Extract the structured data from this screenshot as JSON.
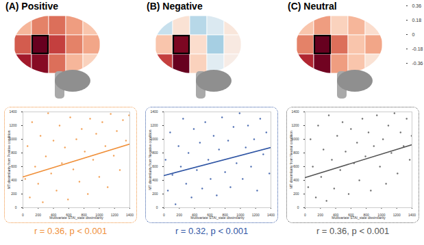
{
  "chart_data": [
    {
      "type": "scatter",
      "title": "(A) Positive",
      "color": "#f0903a",
      "x_label": "Multivariate STAI_state dissimilarity",
      "y_label": "MT dissimilarity from Positive condition",
      "xlim": [
        0,
        1400
      ],
      "ylim": [
        0,
        1400
      ],
      "xticks": [
        0,
        200,
        400,
        600,
        800,
        1000,
        1200,
        1400
      ],
      "yticks": [
        0,
        200,
        400,
        600,
        800,
        1000,
        1200,
        1400
      ],
      "x": [
        30,
        60,
        90,
        120,
        160,
        200,
        230,
        260,
        300,
        330,
        370,
        400,
        440,
        480,
        510,
        550,
        590,
        620,
        660,
        700,
        740,
        770,
        810,
        850,
        880,
        920,
        960,
        1000,
        1040,
        1080,
        1110,
        1150,
        1190,
        1230,
        1270,
        1310,
        1350,
        1390
      ],
      "y": [
        420,
        900,
        150,
        1250,
        600,
        350,
        1050,
        80,
        750,
        1380,
        500,
        980,
        250,
        1200,
        650,
        880,
        120,
        1320,
        560,
        1000,
        380,
        1150,
        820,
        200,
        1300,
        700,
        1080,
        450,
        1250,
        900,
        300,
        1370,
        760,
        1120,
        550,
        1280,
        980,
        1350
      ],
      "trend_line": {
        "x": [
          0,
          1400
        ],
        "y": [
          450,
          930
        ]
      },
      "annotation": "r = 0.36, p < 0.001",
      "brain_regions": [
        0.12,
        0.18,
        0.2,
        0.15,
        0.1,
        0.22,
        0.36,
        0.25,
        0.18,
        0.14,
        0.3,
        0.33,
        0.2,
        0.12,
        0.08
      ]
    },
    {
      "type": "scatter",
      "title": "(B) Negative",
      "color": "#2f55a4",
      "x_label": "Multivariate STAI_state dissimilarity",
      "y_label": "MT dissimilarity from Negative condition",
      "xlim": [
        0,
        1400
      ],
      "ylim": [
        0,
        1400
      ],
      "xticks": [
        0,
        200,
        400,
        600,
        800,
        1000,
        1200,
        1400
      ],
      "yticks": [
        0,
        200,
        400,
        600,
        800,
        1000,
        1200,
        1400
      ],
      "x": [
        20,
        50,
        80,
        110,
        150,
        190,
        220,
        250,
        290,
        320,
        360,
        390,
        430,
        470,
        500,
        540,
        580,
        610,
        650,
        690,
        720,
        760,
        800,
        840,
        870,
        910,
        950,
        990,
        1030,
        1070,
        1100,
        1140,
        1180,
        1220,
        1260,
        1300,
        1340,
        1380
      ],
      "y": [
        700,
        250,
        1100,
        480,
        50,
        900,
        600,
        1300,
        350,
        800,
        150,
        1150,
        550,
        950,
        280,
        1250,
        700,
        420,
        1050,
        180,
        850,
        1320,
        520,
        980,
        300,
        1180,
        650,
        1380,
        420,
        880,
        1200,
        600,
        1000,
        250,
        1300,
        780,
        1100,
        500
      ],
      "trend_line": {
        "x": [
          0,
          1400
        ],
        "y": [
          470,
          880
        ]
      },
      "annotation": "r = 0.32, p < 0.001",
      "brain_regions": [
        -0.08,
        0.05,
        -0.1,
        -0.05,
        0.04,
        0.1,
        0.34,
        0.06,
        -0.12,
        0.03,
        0.25,
        0.36,
        0.08,
        -0.04,
        0.02
      ]
    },
    {
      "type": "scatter",
      "title": "(C) Neutral",
      "color": "#555555",
      "x_label": "Multivariate STAI_state dissimilarity",
      "y_label": "MT dissimilarity from Neutral condition",
      "xlim": [
        0,
        1400
      ],
      "ylim": [
        0,
        1400
      ],
      "xticks": [
        0,
        200,
        400,
        600,
        800,
        1000,
        1200,
        1400
      ],
      "yticks": [
        0,
        200,
        400,
        600,
        800,
        1000,
        1200,
        1400
      ],
      "x": [
        40,
        70,
        100,
        140,
        170,
        210,
        240,
        280,
        310,
        350,
        380,
        420,
        460,
        490,
        530,
        570,
        600,
        640,
        680,
        710,
        750,
        790,
        830,
        860,
        900,
        940,
        980,
        1020,
        1060,
        1090,
        1130,
        1170,
        1210,
        1250,
        1290,
        1330,
        1370,
        1395
      ],
      "y": [
        300,
        1000,
        600,
        150,
        1200,
        450,
        850,
        100,
        1350,
        700,
        280,
        1050,
        550,
        1250,
        820,
        200,
        1150,
        650,
        950,
        400,
        1300,
        750,
        1100,
        250,
        900,
        1350,
        600,
        1000,
        350,
        1200,
        800,
        1380,
        500,
        1100,
        900,
        1300,
        700,
        1050
      ],
      "trend_line": {
        "x": [
          0,
          1400
        ],
        "y": [
          440,
          920
        ]
      },
      "annotation": "r = 0.36, p < 0.001",
      "brain_regions": [
        0.1,
        0.15,
        0.08,
        0.12,
        0.06,
        0.18,
        0.36,
        0.2,
        0.1,
        0.14,
        0.28,
        0.35,
        0.15,
        0.1,
        0.05
      ]
    }
  ],
  "colorbar": {
    "range": [
      -0.36,
      0.36
    ],
    "ticks": [
      0.36,
      0.18,
      0,
      -0.18,
      -0.36
    ]
  }
}
